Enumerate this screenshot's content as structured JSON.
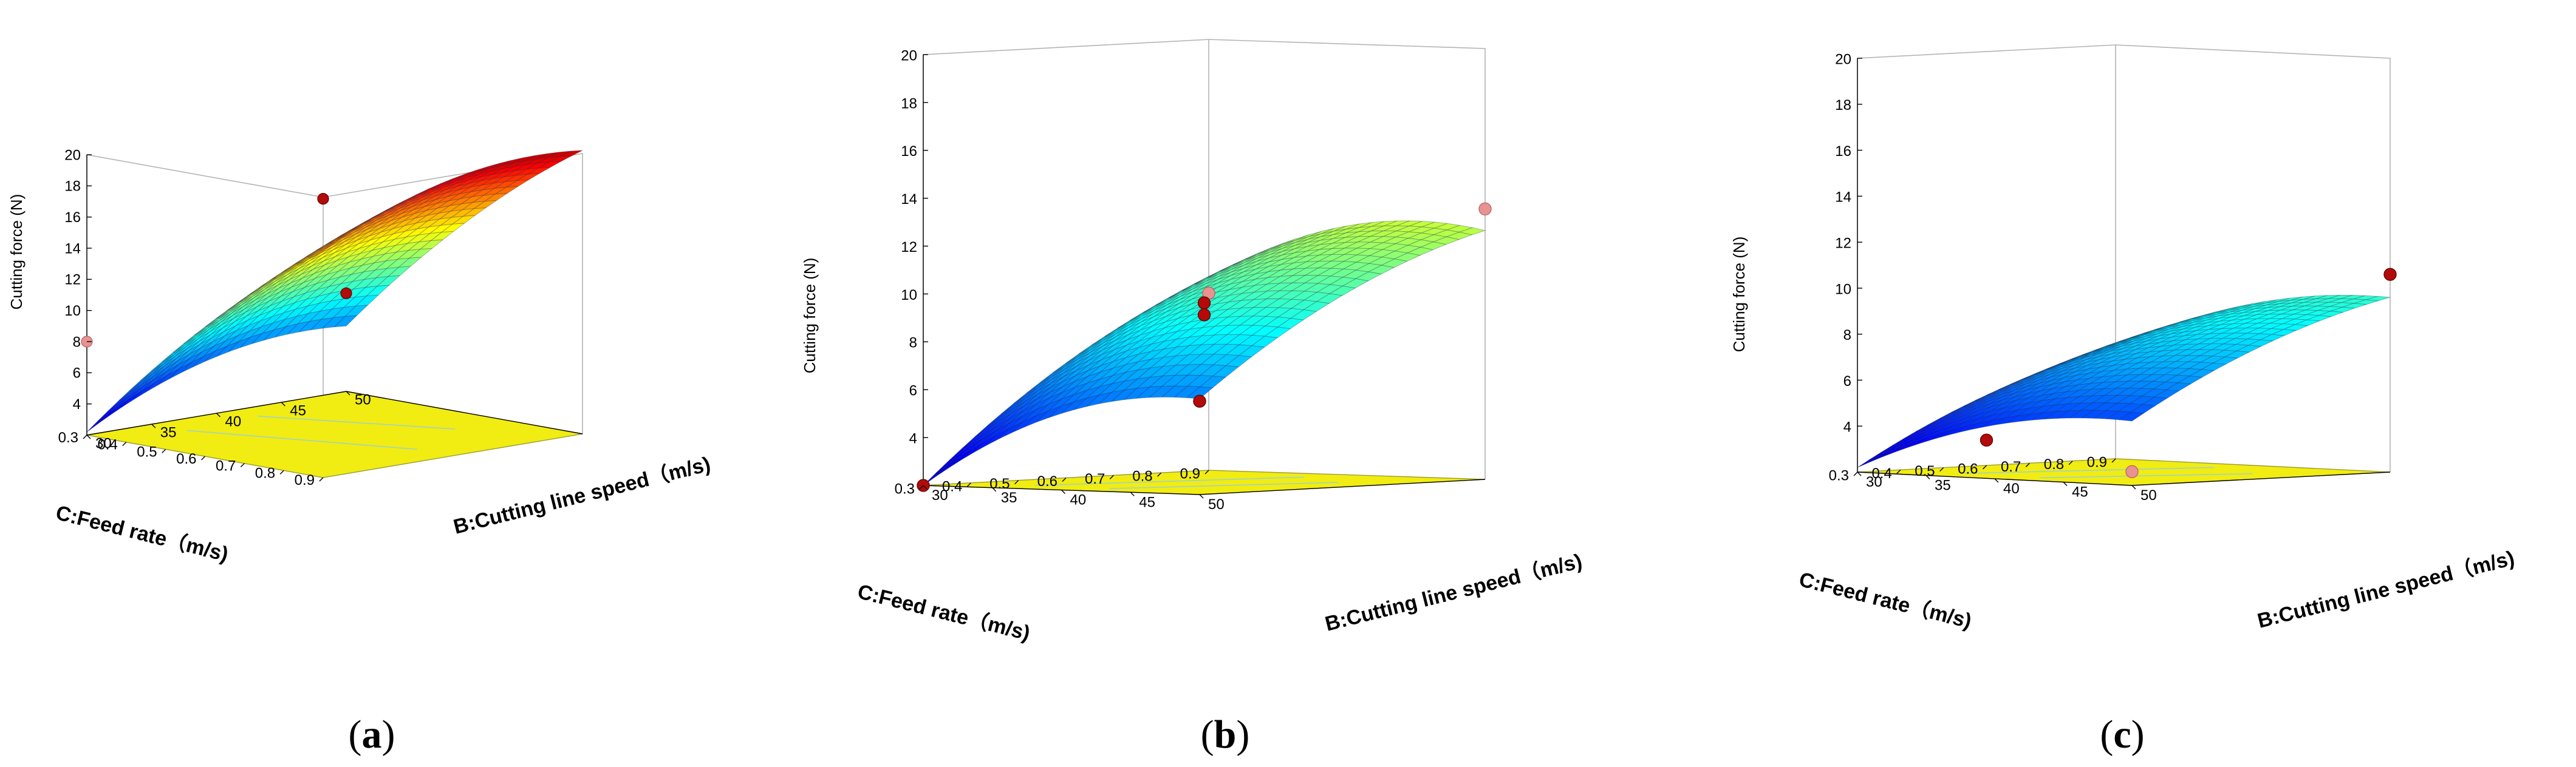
{
  "figure": {
    "panels": [
      {
        "id": "a",
        "caption_letter": "a"
      },
      {
        "id": "b",
        "caption_letter": "b"
      },
      {
        "id": "c",
        "caption_letter": "c"
      }
    ]
  },
  "chart_data": [
    {
      "type": "surface",
      "title": "",
      "zlabel": "Cutting force (N)",
      "xlabel": "B:Cutting line speed（m/s)",
      "ylabel": "C:Feed rate（m/s)",
      "x_ticks": [
        "30",
        "35",
        "40",
        "45",
        "50"
      ],
      "y_ticks": [
        "0.3",
        "0.4",
        "0.5",
        "0.6",
        "0.7",
        "0.8",
        "0.9"
      ],
      "z_ticks": [
        "4",
        "6",
        "8",
        "10",
        "12",
        "14",
        "16",
        "18",
        "20"
      ],
      "xlim": [
        30,
        50
      ],
      "ylim": [
        0.3,
        0.9
      ],
      "zlim": [
        2,
        20
      ],
      "surface_corners": {
        "x30_y0.3": 2.2,
        "x50_y0.3": 6.2,
        "x30_y0.9": 16.5,
        "x50_y0.9": 20.2
      },
      "surface_curvature": 2.4,
      "points": [
        {
          "x": 30,
          "y": 0.9,
          "z": 19.9,
          "above": true
        },
        {
          "x": 30,
          "y": 0.3,
          "z": 8.0,
          "above": false
        },
        {
          "x": 50,
          "y": 0.3,
          "z": 8.3,
          "above": true
        }
      ]
    },
    {
      "type": "surface",
      "title": "",
      "zlabel": "Cutting force (N)",
      "xlabel": "B:Cutting line speed（m/s)",
      "ylabel": "C:Feed rate（m/s)",
      "x_ticks": [
        "30",
        "35",
        "40",
        "45",
        "50"
      ],
      "y_ticks": [
        "0.3",
        "0.4",
        "0.5",
        "0.6",
        "0.7",
        "0.8",
        "0.9"
      ],
      "z_ticks": [
        "4",
        "6",
        "8",
        "10",
        "12",
        "14",
        "16",
        "18",
        "20"
      ],
      "xlim": [
        30,
        50
      ],
      "ylim": [
        0.3,
        0.9
      ],
      "zlim": [
        2,
        20
      ],
      "surface_corners": {
        "x30_y0.3": 2.0,
        "x50_y0.3": 6.0,
        "x30_y0.9": 10.0,
        "x50_y0.9": 12.4
      },
      "surface_curvature": 2.0,
      "points": [
        {
          "x": 30,
          "y": 0.9,
          "z": 9.4,
          "above": false
        },
        {
          "x": 40,
          "y": 0.6,
          "z": 9.5,
          "above": true
        },
        {
          "x": 40,
          "y": 0.6,
          "z": 9.0,
          "above": true
        },
        {
          "x": 50,
          "y": 0.9,
          "z": 13.3,
          "above": false
        },
        {
          "x": 50,
          "y": 0.3,
          "z": 5.9,
          "above": true
        },
        {
          "x": 30,
          "y": 0.3,
          "z": 2.0,
          "above": true
        }
      ]
    },
    {
      "type": "surface",
      "title": "",
      "zlabel": "Cutting force (N)",
      "xlabel": "B:Cutting line speed（m/s)",
      "ylabel": "C:Feed rate（m/s)",
      "x_ticks": [
        "30",
        "35",
        "40",
        "45",
        "50"
      ],
      "y_ticks": [
        "0.3",
        "0.4",
        "0.5",
        "0.6",
        "0.7",
        "0.8",
        "0.9"
      ],
      "z_ticks": [
        "4",
        "6",
        "8",
        "10",
        "12",
        "14",
        "16",
        "18",
        "20"
      ],
      "xlim": [
        30,
        50
      ],
      "ylim": [
        0.3,
        0.9
      ],
      "zlim": [
        2,
        20
      ],
      "surface_corners": {
        "x30_y0.3": 2.2,
        "x50_y0.3": 4.8,
        "x30_y0.9": 6.8,
        "x50_y0.9": 9.6
      },
      "surface_curvature": 1.4,
      "points": [
        {
          "x": 30,
          "y": 0.6,
          "z": 3.1,
          "above": true
        },
        {
          "x": 50,
          "y": 0.9,
          "z": 10.6,
          "above": true
        },
        {
          "x": 50,
          "y": 0.3,
          "z": 2.6,
          "above": false
        }
      ]
    }
  ]
}
